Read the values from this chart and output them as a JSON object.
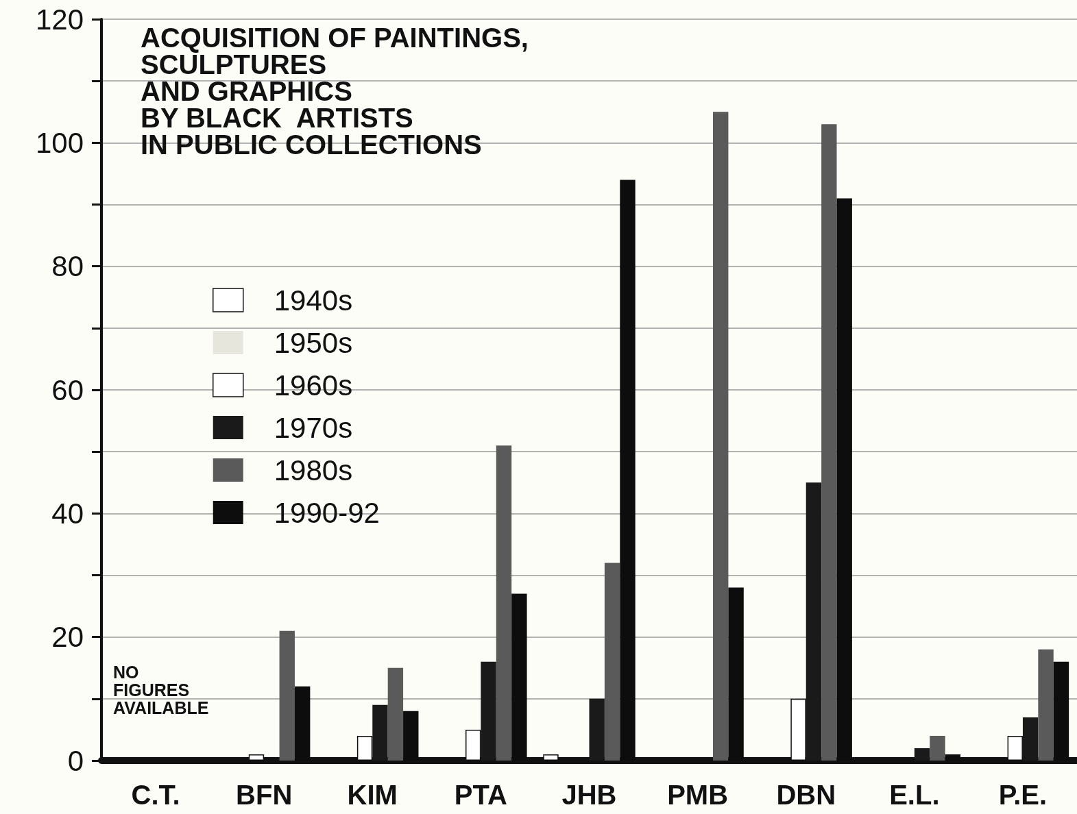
{
  "chart_data": {
    "type": "bar",
    "title": "ACQUISITION OF PAINTINGS,\nSCULPTURES\nAND GRAPHICS\nBY BLACK  ARTISTS\nIN PUBLIC COLLECTIONS",
    "categories": [
      "C.T.",
      "BFN",
      "KIM",
      "PTA",
      "JHB",
      "PMB",
      "DBN",
      "E.L.",
      "P.E."
    ],
    "series": [
      {
        "name": "1940s",
        "color": "#ffffff",
        "values": [
          null,
          0,
          0,
          0,
          1,
          0,
          0,
          0,
          0
        ]
      },
      {
        "name": "1950s",
        "color": "#e6e6dc",
        "values": [
          null,
          0,
          0,
          0,
          0,
          0,
          0,
          0,
          0
        ]
      },
      {
        "name": "1960s",
        "color": "#ffffff",
        "values": [
          null,
          1,
          4,
          5,
          0,
          0,
          10,
          0,
          4
        ]
      },
      {
        "name": "1970s",
        "color": "#1a1a1a",
        "values": [
          null,
          0,
          9,
          16,
          10,
          0,
          45,
          2,
          7
        ]
      },
      {
        "name": "1980s",
        "color": "#5a5a5a",
        "values": [
          null,
          21,
          15,
          51,
          32,
          105,
          103,
          4,
          18
        ]
      },
      {
        "name": "1990-92",
        "color": "#0d0d0d",
        "values": [
          null,
          12,
          8,
          27,
          94,
          28,
          91,
          1,
          16
        ]
      }
    ],
    "ylim": [
      0,
      120
    ],
    "yticks": [
      0,
      {
        "value": 10,
        "label": null
      },
      20,
      {
        "value": 30,
        "label": null
      },
      40,
      {
        "value": 50,
        "label": null
      },
      60,
      {
        "value": 70,
        "label": null
      },
      80,
      {
        "value": 90,
        "label": null
      },
      100,
      {
        "value": 110,
        "label": null
      },
      120
    ],
    "grid": "y",
    "legend": "left",
    "annotations": [
      "NO\nFIGURES\nAVAILABLE"
    ]
  }
}
